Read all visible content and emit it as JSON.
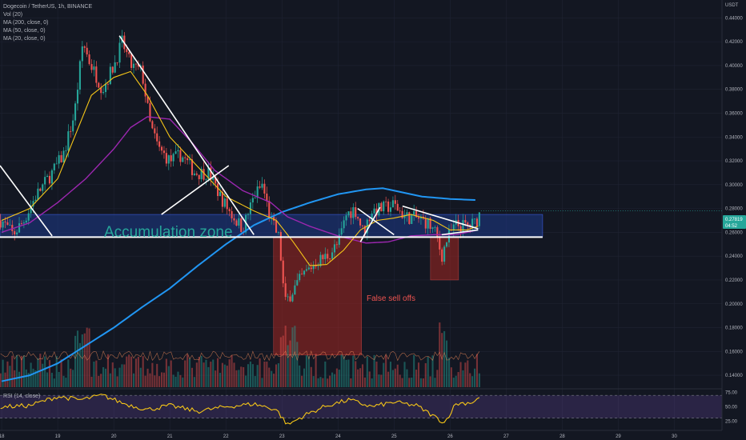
{
  "header": {
    "symbol_title": "Dogecoin / TetherUS, 1h, BINANCE",
    "indicators": [
      "Vol (20)",
      "MA (200, close, 0)",
      "MA (50, close, 0)",
      "MA (20, close, 0)"
    ],
    "rsi_label": "RSI (14, close)"
  },
  "price_axis": {
    "currency": "USDT",
    "ticks": [
      "0.44000",
      "0.42000",
      "0.40000",
      "0.38000",
      "0.36000",
      "0.34000",
      "0.32000",
      "0.30000",
      "0.28000",
      "0.26000",
      "0.24000",
      "0.22000",
      "0.20000",
      "0.18000",
      "0.16000",
      "0.14000"
    ],
    "current_price": "0.27819",
    "countdown": "04:52"
  },
  "rsi_axis": {
    "ticks": [
      "75.00",
      "50.00",
      "25.00"
    ]
  },
  "time_axis": {
    "ticks": [
      "18",
      "19",
      "20",
      "21",
      "22",
      "23",
      "24",
      "25",
      "26",
      "27",
      "28",
      "29",
      "30"
    ]
  },
  "annotations": {
    "zone_label": "Accumulation zone",
    "sell_label": "False sell offs"
  },
  "colors": {
    "background": "#131722",
    "grid": "#1f2333",
    "up": "#26a69a",
    "down": "#ef5350",
    "ma200": "#2196f3",
    "ma50": "#9c27b0",
    "ma20": "#f5c518",
    "zone_fill": "#1e3a8a",
    "sell_box": "#b2281f",
    "rsi": "#f5c518"
  },
  "chart_data": {
    "type": "candlestick",
    "title": "Dogecoin / TetherUS, 1h, BINANCE",
    "x_unit": "day of month",
    "y_unit": "USDT",
    "ylim": [
      0.13,
      0.455
    ],
    "xlim": [
      17.97,
      30.85
    ],
    "price_anchors": [
      [
        18.0,
        0.27
      ],
      [
        18.2,
        0.258
      ],
      [
        18.4,
        0.27
      ],
      [
        18.6,
        0.29
      ],
      [
        18.9,
        0.31
      ],
      [
        19.1,
        0.325
      ],
      [
        19.3,
        0.36
      ],
      [
        19.45,
        0.42
      ],
      [
        19.55,
        0.405
      ],
      [
        19.8,
        0.38
      ],
      [
        20.0,
        0.4
      ],
      [
        20.15,
        0.42
      ],
      [
        20.3,
        0.4
      ],
      [
        20.5,
        0.395
      ],
      [
        20.65,
        0.35
      ],
      [
        20.8,
        0.33
      ],
      [
        21.0,
        0.32
      ],
      [
        21.2,
        0.325
      ],
      [
        21.45,
        0.31
      ],
      [
        21.7,
        0.31
      ],
      [
        21.9,
        0.29
      ],
      [
        22.1,
        0.275
      ],
      [
        22.3,
        0.263
      ],
      [
        22.5,
        0.29
      ],
      [
        22.65,
        0.3
      ],
      [
        22.8,
        0.27
      ],
      [
        22.95,
        0.255
      ],
      [
        23.05,
        0.2
      ],
      [
        23.2,
        0.212
      ],
      [
        23.4,
        0.225
      ],
      [
        23.6,
        0.235
      ],
      [
        23.8,
        0.24
      ],
      [
        24.0,
        0.25
      ],
      [
        24.15,
        0.275
      ],
      [
        24.3,
        0.28
      ],
      [
        24.45,
        0.26
      ],
      [
        24.6,
        0.278
      ],
      [
        24.8,
        0.28
      ],
      [
        25.0,
        0.283
      ],
      [
        25.2,
        0.273
      ],
      [
        25.4,
        0.272
      ],
      [
        25.6,
        0.268
      ],
      [
        25.75,
        0.258
      ],
      [
        25.85,
        0.24
      ],
      [
        25.95,
        0.255
      ],
      [
        26.1,
        0.266
      ],
      [
        26.3,
        0.265
      ],
      [
        26.45,
        0.268
      ],
      [
        26.55,
        0.278
      ]
    ],
    "ma200": [
      [
        18.0,
        0.135
      ],
      [
        18.5,
        0.14
      ],
      [
        19.0,
        0.15
      ],
      [
        19.5,
        0.165
      ],
      [
        20.0,
        0.18
      ],
      [
        20.5,
        0.197
      ],
      [
        21.0,
        0.213
      ],
      [
        21.5,
        0.232
      ],
      [
        22.0,
        0.25
      ],
      [
        22.5,
        0.266
      ],
      [
        23.0,
        0.277
      ],
      [
        23.5,
        0.285
      ],
      [
        24.0,
        0.292
      ],
      [
        24.5,
        0.296
      ],
      [
        24.8,
        0.297
      ],
      [
        25.0,
        0.295
      ],
      [
        25.5,
        0.29
      ],
      [
        26.0,
        0.288
      ],
      [
        26.5,
        0.287
      ]
    ],
    "ma50": [
      [
        18.0,
        0.26
      ],
      [
        18.5,
        0.268
      ],
      [
        19.0,
        0.285
      ],
      [
        19.5,
        0.305
      ],
      [
        20.0,
        0.33
      ],
      [
        20.3,
        0.348
      ],
      [
        20.6,
        0.357
      ],
      [
        21.0,
        0.355
      ],
      [
        21.4,
        0.335
      ],
      [
        21.8,
        0.312
      ],
      [
        22.3,
        0.295
      ],
      [
        22.8,
        0.285
      ],
      [
        23.1,
        0.273
      ],
      [
        23.5,
        0.265
      ],
      [
        24.0,
        0.257
      ],
      [
        24.5,
        0.251
      ],
      [
        24.9,
        0.252
      ],
      [
        25.3,
        0.257
      ],
      [
        25.7,
        0.258
      ],
      [
        26.1,
        0.258
      ],
      [
        26.5,
        0.262
      ]
    ],
    "ma20": [
      [
        18.0,
        0.27
      ],
      [
        18.5,
        0.28
      ],
      [
        19.0,
        0.305
      ],
      [
        19.3,
        0.34
      ],
      [
        19.6,
        0.375
      ],
      [
        20.0,
        0.39
      ],
      [
        20.3,
        0.395
      ],
      [
        20.6,
        0.375
      ],
      [
        21.0,
        0.34
      ],
      [
        21.5,
        0.315
      ],
      [
        22.0,
        0.29
      ],
      [
        22.5,
        0.278
      ],
      [
        22.9,
        0.27
      ],
      [
        23.2,
        0.252
      ],
      [
        23.5,
        0.232
      ],
      [
        23.8,
        0.233
      ],
      [
        24.1,
        0.245
      ],
      [
        24.4,
        0.262
      ],
      [
        24.7,
        0.27
      ],
      [
        25.0,
        0.272
      ],
      [
        25.3,
        0.275
      ],
      [
        25.7,
        0.27
      ],
      [
        26.0,
        0.262
      ],
      [
        26.3,
        0.262
      ],
      [
        26.55,
        0.266
      ]
    ],
    "volume_ma_level": 0.44,
    "volume_bounds": {
      "ymin": 0.13,
      "ymax": 0.19
    },
    "rsi": {
      "ylim": [
        10,
        80
      ],
      "levels": [
        70,
        30
      ],
      "anchors": [
        [
          18.0,
          50
        ],
        [
          18.5,
          52
        ],
        [
          19.0,
          68
        ],
        [
          19.4,
          62
        ],
        [
          19.8,
          70
        ],
        [
          20.2,
          55
        ],
        [
          20.6,
          45
        ],
        [
          21.0,
          52
        ],
        [
          21.5,
          42
        ],
        [
          22.0,
          50
        ],
        [
          22.5,
          55
        ],
        [
          22.9,
          45
        ],
        [
          23.1,
          18
        ],
        [
          23.4,
          35
        ],
        [
          23.8,
          52
        ],
        [
          24.2,
          62
        ],
        [
          24.6,
          50
        ],
        [
          25.0,
          58
        ],
        [
          25.4,
          52
        ],
        [
          25.8,
          28
        ],
        [
          25.9,
          22
        ],
        [
          26.1,
          55
        ],
        [
          26.4,
          58
        ],
        [
          26.55,
          68
        ]
      ]
    },
    "annotations": [
      {
        "kind": "rect",
        "name": "accumulation-zone",
        "x1": 17.97,
        "x2": 27.65,
        "y1": 0.256,
        "y2": 0.275
      },
      {
        "kind": "hline",
        "name": "support-line",
        "x1": 17.97,
        "x2": 27.65,
        "y": 0.256
      },
      {
        "kind": "rect",
        "name": "sell-off-box-1",
        "x1": 22.85,
        "x2": 24.42,
        "y1": 0.157,
        "y2": 0.256
      },
      {
        "kind": "rect",
        "name": "sell-off-box-2",
        "x1": 25.65,
        "x2": 26.15,
        "y1": 0.22,
        "y2": 0.256
      },
      {
        "kind": "line",
        "name": "trendline-1",
        "x1": 17.97,
        "x2": 18.9,
        "y1": 0.316,
        "y2": 0.257
      },
      {
        "kind": "line",
        "name": "trendline-2",
        "x1": 20.1,
        "x2": 22.5,
        "y1": 0.425,
        "y2": 0.258
      },
      {
        "kind": "line",
        "name": "trendline-3",
        "x1": 20.85,
        "x2": 22.05,
        "y1": 0.275,
        "y2": 0.316
      },
      {
        "kind": "line",
        "name": "trendline-4",
        "x1": 24.35,
        "x2": 25.0,
        "y1": 0.28,
        "y2": 0.258
      },
      {
        "kind": "line",
        "name": "trendline-5",
        "x1": 24.4,
        "x2": 24.75,
        "y1": 0.252,
        "y2": 0.281
      },
      {
        "kind": "line",
        "name": "trendline-6",
        "x1": 25.15,
        "x2": 26.5,
        "y1": 0.282,
        "y2": 0.263
      },
      {
        "kind": "line",
        "name": "trendline-7",
        "x1": 25.85,
        "x2": 26.5,
        "y1": 0.258,
        "y2": 0.262
      }
    ]
  }
}
